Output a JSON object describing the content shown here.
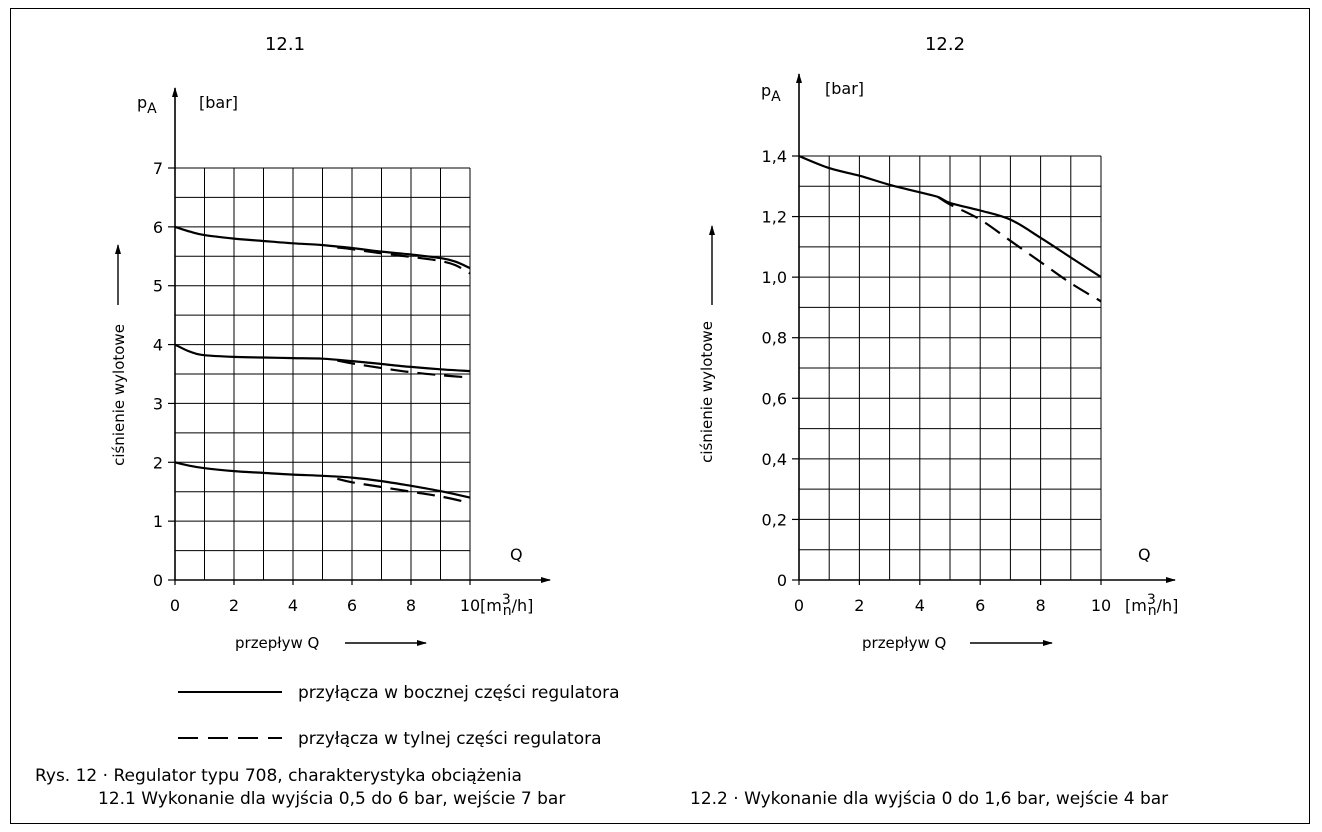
{
  "legend": {
    "solid_label": "przyłącza w bocznej części regulatora",
    "dashed_label": "przyłącza w tylnej części regulatora",
    "placement": "below-left"
  },
  "caption": {
    "line1": "Rys. 12 · Regulator typu 708, charakterystyka obciążenia",
    "line2": "12.1 Wykonanie dla wyjścia 0,5 do 6 bar, wejście 7 bar",
    "line3": "12.2 · Wykonanie dla wyjścia 0 do 1,6 bar, wejście 4 bar"
  },
  "chart_data": [
    {
      "type": "line",
      "title": "12.1",
      "ylabel": "ciśnienie wylotowe",
      "ysymbol": "p",
      "ysymbol_sub": "A",
      "yunit": "[bar]",
      "xlabel": "przepływ Q",
      "xsymbol": "Q",
      "xunit_main": "[m",
      "xunit_sup": "3",
      "xunit_sub": "n",
      "xunit_tail": "/h]",
      "xlim": [
        0,
        10
      ],
      "ylim": [
        0,
        7
      ],
      "xticks": [
        0,
        2,
        4,
        6,
        8,
        10
      ],
      "xtick_labels": [
        "0",
        "2",
        "4",
        "6",
        "8",
        "10"
      ],
      "yticks": [
        0,
        1,
        2,
        3,
        4,
        5,
        6,
        7
      ],
      "ytick_labels": [
        "0",
        "1",
        "2",
        "3",
        "4",
        "5",
        "6",
        "7"
      ],
      "grid": true,
      "grid_x_step": 1,
      "grid_y_step": 0.5,
      "series": [
        {
          "style": "solid",
          "x": [
            0,
            0.5,
            1,
            2,
            3,
            4,
            5,
            6,
            7,
            8,
            9,
            9.5,
            10
          ],
          "y": [
            6.0,
            5.92,
            5.86,
            5.8,
            5.76,
            5.72,
            5.69,
            5.64,
            5.58,
            5.53,
            5.47,
            5.41,
            5.3
          ]
        },
        {
          "style": "dashed",
          "x": [
            5.5,
            6,
            7,
            8,
            9,
            9.5,
            10
          ],
          "y": [
            5.65,
            5.62,
            5.55,
            5.49,
            5.42,
            5.35,
            5.21
          ]
        },
        {
          "style": "solid",
          "x": [
            0,
            0.5,
            1,
            2,
            3,
            4,
            5,
            6,
            7,
            8,
            9,
            10
          ],
          "y": [
            4.0,
            3.88,
            3.82,
            3.79,
            3.78,
            3.77,
            3.76,
            3.72,
            3.67,
            3.62,
            3.58,
            3.55
          ]
        },
        {
          "style": "dashed",
          "x": [
            5.5,
            6,
            7,
            8,
            9,
            10
          ],
          "y": [
            3.73,
            3.68,
            3.6,
            3.53,
            3.48,
            3.44
          ]
        },
        {
          "style": "solid",
          "x": [
            0,
            0.5,
            1,
            2,
            3,
            4,
            5,
            6,
            7,
            8,
            9,
            10
          ],
          "y": [
            2.0,
            1.94,
            1.9,
            1.85,
            1.82,
            1.79,
            1.77,
            1.74,
            1.68,
            1.6,
            1.51,
            1.4
          ]
        },
        {
          "style": "dashed",
          "x": [
            5.5,
            6,
            7,
            8,
            9,
            10
          ],
          "y": [
            1.72,
            1.66,
            1.58,
            1.5,
            1.42,
            1.31
          ]
        }
      ]
    },
    {
      "type": "line",
      "title": "12.2",
      "ylabel": "ciśnienie wylotowe",
      "ysymbol": "p",
      "ysymbol_sub": "A",
      "yunit": "[bar]",
      "xlabel": "przepływ Q",
      "xsymbol": "Q",
      "xunit_main": "[m",
      "xunit_sup": "3",
      "xunit_sub": "n",
      "xunit_tail": "/h]",
      "xlim": [
        0,
        10
      ],
      "ylim": [
        0,
        1.4
      ],
      "xticks": [
        0,
        2,
        4,
        6,
        8,
        10
      ],
      "xtick_labels": [
        "0",
        "2",
        "4",
        "6",
        "8",
        "10"
      ],
      "yticks": [
        0,
        0.2,
        0.4,
        0.6,
        0.8,
        1.0,
        1.2,
        1.4
      ],
      "ytick_labels": [
        "0",
        "0,2",
        "0,4",
        "0,6",
        "0,8",
        "1,0",
        "1,2",
        "1,4"
      ],
      "grid": true,
      "grid_x_step": 1,
      "grid_y_step": 0.1,
      "series": [
        {
          "style": "solid",
          "x": [
            0,
            1,
            2,
            3,
            4,
            4.6,
            5,
            6,
            7,
            8,
            9,
            10
          ],
          "y": [
            1.4,
            1.36,
            1.335,
            1.305,
            1.28,
            1.265,
            1.245,
            1.22,
            1.19,
            1.13,
            1.065,
            1.0
          ]
        },
        {
          "style": "dashed",
          "x": [
            4.6,
            5,
            6,
            7,
            8,
            9,
            10
          ],
          "y": [
            1.265,
            1.24,
            1.19,
            1.12,
            1.05,
            0.98,
            0.92
          ]
        }
      ]
    }
  ]
}
